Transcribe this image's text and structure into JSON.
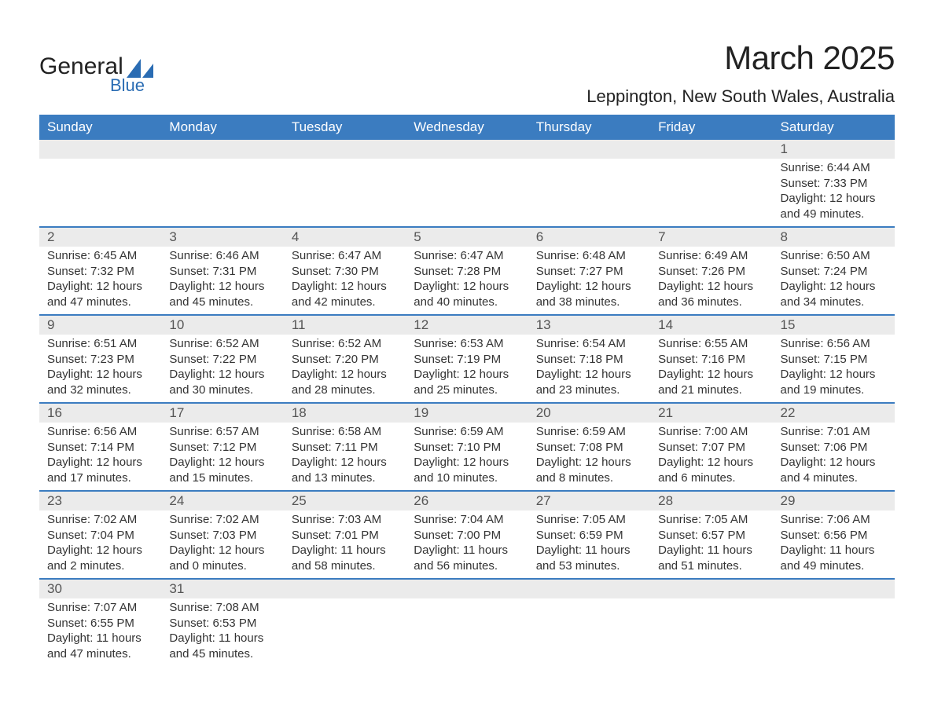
{
  "logo": {
    "line1": "General",
    "line2": "Blue",
    "tri_color": "#2a6cb3"
  },
  "colors": {
    "header_bg": "#3b7cc0",
    "header_text": "#ffffff",
    "daynum_bg": "#ebebeb",
    "row_border": "#3b7cc0",
    "text": "#333333"
  },
  "title": "March 2025",
  "location": "Leppington, New South Wales, Australia",
  "day_headers": [
    "Sunday",
    "Monday",
    "Tuesday",
    "Wednesday",
    "Thursday",
    "Friday",
    "Saturday"
  ],
  "weeks": [
    [
      {
        "blank": true
      },
      {
        "blank": true
      },
      {
        "blank": true
      },
      {
        "blank": true
      },
      {
        "blank": true
      },
      {
        "blank": true
      },
      {
        "num": "1",
        "sunrise": "Sunrise: 6:44 AM",
        "sunset": "Sunset: 7:33 PM",
        "daylight1": "Daylight: 12 hours",
        "daylight2": "and 49 minutes."
      }
    ],
    [
      {
        "num": "2",
        "sunrise": "Sunrise: 6:45 AM",
        "sunset": "Sunset: 7:32 PM",
        "daylight1": "Daylight: 12 hours",
        "daylight2": "and 47 minutes."
      },
      {
        "num": "3",
        "sunrise": "Sunrise: 6:46 AM",
        "sunset": "Sunset: 7:31 PM",
        "daylight1": "Daylight: 12 hours",
        "daylight2": "and 45 minutes."
      },
      {
        "num": "4",
        "sunrise": "Sunrise: 6:47 AM",
        "sunset": "Sunset: 7:30 PM",
        "daylight1": "Daylight: 12 hours",
        "daylight2": "and 42 minutes."
      },
      {
        "num": "5",
        "sunrise": "Sunrise: 6:47 AM",
        "sunset": "Sunset: 7:28 PM",
        "daylight1": "Daylight: 12 hours",
        "daylight2": "and 40 minutes."
      },
      {
        "num": "6",
        "sunrise": "Sunrise: 6:48 AM",
        "sunset": "Sunset: 7:27 PM",
        "daylight1": "Daylight: 12 hours",
        "daylight2": "and 38 minutes."
      },
      {
        "num": "7",
        "sunrise": "Sunrise: 6:49 AM",
        "sunset": "Sunset: 7:26 PM",
        "daylight1": "Daylight: 12 hours",
        "daylight2": "and 36 minutes."
      },
      {
        "num": "8",
        "sunrise": "Sunrise: 6:50 AM",
        "sunset": "Sunset: 7:24 PM",
        "daylight1": "Daylight: 12 hours",
        "daylight2": "and 34 minutes."
      }
    ],
    [
      {
        "num": "9",
        "sunrise": "Sunrise: 6:51 AM",
        "sunset": "Sunset: 7:23 PM",
        "daylight1": "Daylight: 12 hours",
        "daylight2": "and 32 minutes."
      },
      {
        "num": "10",
        "sunrise": "Sunrise: 6:52 AM",
        "sunset": "Sunset: 7:22 PM",
        "daylight1": "Daylight: 12 hours",
        "daylight2": "and 30 minutes."
      },
      {
        "num": "11",
        "sunrise": "Sunrise: 6:52 AM",
        "sunset": "Sunset: 7:20 PM",
        "daylight1": "Daylight: 12 hours",
        "daylight2": "and 28 minutes."
      },
      {
        "num": "12",
        "sunrise": "Sunrise: 6:53 AM",
        "sunset": "Sunset: 7:19 PM",
        "daylight1": "Daylight: 12 hours",
        "daylight2": "and 25 minutes."
      },
      {
        "num": "13",
        "sunrise": "Sunrise: 6:54 AM",
        "sunset": "Sunset: 7:18 PM",
        "daylight1": "Daylight: 12 hours",
        "daylight2": "and 23 minutes."
      },
      {
        "num": "14",
        "sunrise": "Sunrise: 6:55 AM",
        "sunset": "Sunset: 7:16 PM",
        "daylight1": "Daylight: 12 hours",
        "daylight2": "and 21 minutes."
      },
      {
        "num": "15",
        "sunrise": "Sunrise: 6:56 AM",
        "sunset": "Sunset: 7:15 PM",
        "daylight1": "Daylight: 12 hours",
        "daylight2": "and 19 minutes."
      }
    ],
    [
      {
        "num": "16",
        "sunrise": "Sunrise: 6:56 AM",
        "sunset": "Sunset: 7:14 PM",
        "daylight1": "Daylight: 12 hours",
        "daylight2": "and 17 minutes."
      },
      {
        "num": "17",
        "sunrise": "Sunrise: 6:57 AM",
        "sunset": "Sunset: 7:12 PM",
        "daylight1": "Daylight: 12 hours",
        "daylight2": "and 15 minutes."
      },
      {
        "num": "18",
        "sunrise": "Sunrise: 6:58 AM",
        "sunset": "Sunset: 7:11 PM",
        "daylight1": "Daylight: 12 hours",
        "daylight2": "and 13 minutes."
      },
      {
        "num": "19",
        "sunrise": "Sunrise: 6:59 AM",
        "sunset": "Sunset: 7:10 PM",
        "daylight1": "Daylight: 12 hours",
        "daylight2": "and 10 minutes."
      },
      {
        "num": "20",
        "sunrise": "Sunrise: 6:59 AM",
        "sunset": "Sunset: 7:08 PM",
        "daylight1": "Daylight: 12 hours",
        "daylight2": "and 8 minutes."
      },
      {
        "num": "21",
        "sunrise": "Sunrise: 7:00 AM",
        "sunset": "Sunset: 7:07 PM",
        "daylight1": "Daylight: 12 hours",
        "daylight2": "and 6 minutes."
      },
      {
        "num": "22",
        "sunrise": "Sunrise: 7:01 AM",
        "sunset": "Sunset: 7:06 PM",
        "daylight1": "Daylight: 12 hours",
        "daylight2": "and 4 minutes."
      }
    ],
    [
      {
        "num": "23",
        "sunrise": "Sunrise: 7:02 AM",
        "sunset": "Sunset: 7:04 PM",
        "daylight1": "Daylight: 12 hours",
        "daylight2": "and 2 minutes."
      },
      {
        "num": "24",
        "sunrise": "Sunrise: 7:02 AM",
        "sunset": "Sunset: 7:03 PM",
        "daylight1": "Daylight: 12 hours",
        "daylight2": "and 0 minutes."
      },
      {
        "num": "25",
        "sunrise": "Sunrise: 7:03 AM",
        "sunset": "Sunset: 7:01 PM",
        "daylight1": "Daylight: 11 hours",
        "daylight2": "and 58 minutes."
      },
      {
        "num": "26",
        "sunrise": "Sunrise: 7:04 AM",
        "sunset": "Sunset: 7:00 PM",
        "daylight1": "Daylight: 11 hours",
        "daylight2": "and 56 minutes."
      },
      {
        "num": "27",
        "sunrise": "Sunrise: 7:05 AM",
        "sunset": "Sunset: 6:59 PM",
        "daylight1": "Daylight: 11 hours",
        "daylight2": "and 53 minutes."
      },
      {
        "num": "28",
        "sunrise": "Sunrise: 7:05 AM",
        "sunset": "Sunset: 6:57 PM",
        "daylight1": "Daylight: 11 hours",
        "daylight2": "and 51 minutes."
      },
      {
        "num": "29",
        "sunrise": "Sunrise: 7:06 AM",
        "sunset": "Sunset: 6:56 PM",
        "daylight1": "Daylight: 11 hours",
        "daylight2": "and 49 minutes."
      }
    ],
    [
      {
        "num": "30",
        "sunrise": "Sunrise: 7:07 AM",
        "sunset": "Sunset: 6:55 PM",
        "daylight1": "Daylight: 11 hours",
        "daylight2": "and 47 minutes."
      },
      {
        "num": "31",
        "sunrise": "Sunrise: 7:08 AM",
        "sunset": "Sunset: 6:53 PM",
        "daylight1": "Daylight: 11 hours",
        "daylight2": "and 45 minutes."
      },
      {
        "blank": true
      },
      {
        "blank": true
      },
      {
        "blank": true
      },
      {
        "blank": true
      },
      {
        "blank": true
      }
    ]
  ]
}
